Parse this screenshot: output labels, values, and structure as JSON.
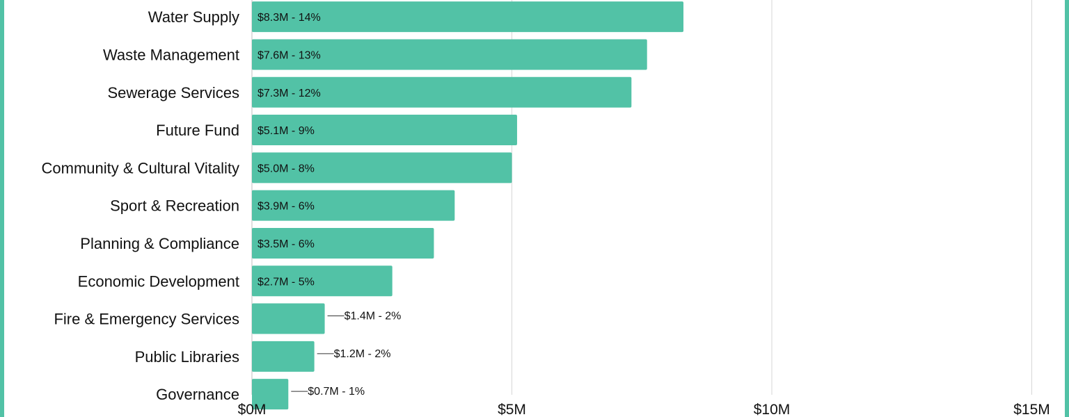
{
  "chart_data": {
    "type": "bar",
    "orientation": "horizontal",
    "title": "",
    "xlabel": "",
    "ylabel": "",
    "xlim": [
      0,
      15
    ],
    "grid": true,
    "x_ticks": [
      {
        "value": 0,
        "label": "$0M"
      },
      {
        "value": 5,
        "label": "$5M"
      },
      {
        "value": 10,
        "label": "$10M"
      },
      {
        "value": 15,
        "label": "$15M"
      }
    ],
    "categories": [
      "Water Supply",
      "Waste Management",
      "Sewerage Services",
      "Future Fund",
      "Community & Cultural Vitality",
      "Sport & Recreation",
      "Planning & Compliance",
      "Economic Development",
      "Fire & Emergency Services",
      "Public Libraries",
      "Governance"
    ],
    "values": [
      8.3,
      7.6,
      7.3,
      5.1,
      5.0,
      3.9,
      3.5,
      2.7,
      1.4,
      1.2,
      0.7
    ],
    "data_labels": [
      "$8.3M - 14%",
      "$7.6M - 13%",
      "$7.3M - 12%",
      "$5.1M - 9%",
      "$5.0M - 8%",
      "$3.9M - 6%",
      "$3.5M - 6%",
      "$2.7M - 5%",
      "$1.4M - 2%",
      "$1.2M - 2%",
      "$0.7M - 1%"
    ],
    "colors": {
      "bar": "#52c2a6",
      "frame": "#52c2a6",
      "grid": "#d6d6d6"
    }
  }
}
